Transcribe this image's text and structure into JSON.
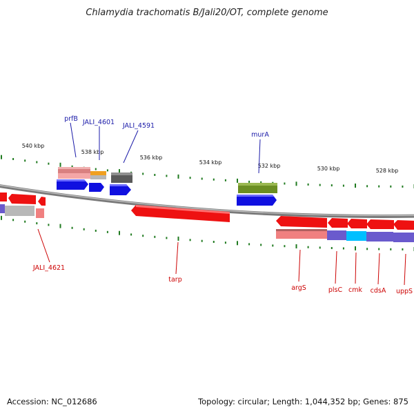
{
  "title": "Chlamydia trachomatis B/Jali20/OT, complete genome",
  "footer": {
    "accession": "Accession: NC_012686",
    "summary": "Topology: circular; Length: 1,044,352 bp; Genes: 875"
  },
  "colors": {
    "forward_label": "#1a1aa8",
    "reverse_label": "#cc0000",
    "backbone": "#8c8c8c",
    "tick": "#1f7a1f"
  },
  "scale_ticks": [
    {
      "label": "540 kbp"
    },
    {
      "label": "538 kbp"
    },
    {
      "label": "536 kbp"
    },
    {
      "label": "534 kbp"
    },
    {
      "label": "532 kbp"
    },
    {
      "label": "530 kbp"
    },
    {
      "label": "528 kbp"
    }
  ],
  "gene_labels": [
    {
      "id": "prfB",
      "text": "prfB",
      "strand": "forward"
    },
    {
      "id": "jali-4601",
      "text": "JALI_4601",
      "strand": "forward"
    },
    {
      "id": "jali-4591",
      "text": "JALI_4591",
      "strand": "forward"
    },
    {
      "id": "mura",
      "text": "murA",
      "strand": "forward"
    },
    {
      "id": "jali-4621",
      "text": "JALI_4621",
      "strand": "reverse"
    },
    {
      "id": "tarp",
      "text": "tarp",
      "strand": "reverse"
    },
    {
      "id": "args",
      "text": "argS",
      "strand": "reverse"
    },
    {
      "id": "plsc",
      "text": "plsC",
      "strand": "reverse"
    },
    {
      "id": "cmk",
      "text": "cmk",
      "strand": "reverse"
    },
    {
      "id": "cdsa",
      "text": "cdsA",
      "strand": "reverse"
    },
    {
      "id": "upps",
      "text": "uppS",
      "strand": "reverse"
    }
  ]
}
